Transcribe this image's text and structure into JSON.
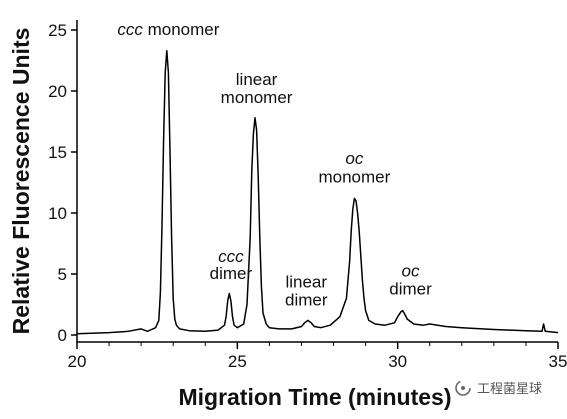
{
  "chart_data": {
    "type": "line",
    "xlabel": "Migration Time (minutes)",
    "ylabel": "Relative Fluorescence Units",
    "xlim": [
      20,
      35
    ],
    "ylim": [
      0,
      25
    ],
    "x_ticks": [
      "20",
      "25",
      "30",
      "35"
    ],
    "y_ticks": [
      "0",
      "5",
      "10",
      "15",
      "20",
      "25"
    ],
    "grid": false,
    "series": [
      {
        "color": "#000000",
        "x": [
          20.0,
          21.0,
          21.6,
          22.0,
          22.2,
          22.45,
          22.55,
          22.6,
          22.65,
          22.7,
          22.75,
          22.8,
          22.85,
          22.9,
          22.95,
          23.0,
          23.05,
          23.1,
          23.2,
          23.5,
          24.0,
          24.4,
          24.6,
          24.65,
          24.7,
          24.75,
          24.8,
          24.85,
          24.9,
          25.0,
          25.2,
          25.3,
          25.4,
          25.45,
          25.5,
          25.55,
          25.6,
          25.65,
          25.7,
          25.75,
          25.8,
          25.9,
          26.0,
          26.3,
          26.7,
          27.0,
          27.1,
          27.2,
          27.3,
          27.4,
          27.6,
          27.9,
          28.2,
          28.4,
          28.5,
          28.55,
          28.6,
          28.65,
          28.7,
          28.75,
          28.8,
          28.85,
          28.9,
          28.95,
          29.0,
          29.1,
          29.3,
          29.6,
          29.9,
          30.0,
          30.1,
          30.15,
          30.2,
          30.3,
          30.5,
          30.8,
          31.0,
          31.5,
          32.0,
          33.0,
          34.0,
          34.5,
          34.55,
          34.6,
          35.0
        ],
        "y": [
          0.1,
          0.2,
          0.3,
          0.5,
          0.3,
          0.6,
          1.2,
          3.5,
          9.0,
          16.0,
          21.5,
          23.3,
          21.5,
          15.0,
          8.0,
          3.0,
          1.3,
          0.8,
          0.5,
          0.35,
          0.3,
          0.4,
          0.8,
          1.5,
          2.8,
          3.4,
          2.8,
          1.5,
          0.8,
          0.6,
          0.9,
          2.5,
          8.0,
          13.5,
          16.5,
          17.8,
          16.8,
          13.0,
          8.0,
          4.0,
          1.8,
          0.9,
          0.6,
          0.5,
          0.5,
          0.7,
          1.0,
          1.2,
          1.0,
          0.7,
          0.6,
          0.8,
          1.5,
          3.0,
          6.0,
          8.5,
          10.3,
          11.2,
          11.0,
          10.0,
          8.5,
          6.5,
          4.5,
          3.0,
          2.0,
          1.2,
          0.9,
          0.8,
          1.0,
          1.5,
          1.9,
          2.0,
          1.8,
          1.3,
          0.9,
          0.8,
          0.9,
          0.7,
          0.6,
          0.45,
          0.35,
          0.3,
          0.9,
          0.3,
          0.2
        ]
      }
    ],
    "annotations": [
      {
        "italic": "ccc",
        "text": "monomer",
        "x": 22.85,
        "y": 24.6,
        "lines": 1
      },
      {
        "italic": "",
        "text": "linear",
        "x": 25.6,
        "y": 20.5,
        "lines": 1
      },
      {
        "italic": "",
        "text": "monomer",
        "x": 25.6,
        "y": 19.0,
        "lines": 1
      },
      {
        "italic": "ccc",
        "text": "",
        "x": 24.8,
        "y": 6.0,
        "lines": 1
      },
      {
        "italic": "",
        "text": "dimer",
        "x": 24.8,
        "y": 4.6,
        "lines": 1
      },
      {
        "italic": "",
        "text": "linear",
        "x": 27.15,
        "y": 3.9,
        "lines": 1
      },
      {
        "italic": "",
        "text": "dimer",
        "x": 27.15,
        "y": 2.4,
        "lines": 1
      },
      {
        "italic": "oc",
        "text": "",
        "x": 28.65,
        "y": 14.0,
        "lines": 1
      },
      {
        "italic": "",
        "text": "monomer",
        "x": 28.65,
        "y": 12.5,
        "lines": 1
      },
      {
        "italic": "oc",
        "text": "",
        "x": 30.4,
        "y": 4.8,
        "lines": 1
      },
      {
        "italic": "",
        "text": "dimer",
        "x": 30.4,
        "y": 3.3,
        "lines": 1
      }
    ]
  },
  "watermark": {
    "icon": "flask-spark-icon",
    "text": "工程菌星球"
  }
}
